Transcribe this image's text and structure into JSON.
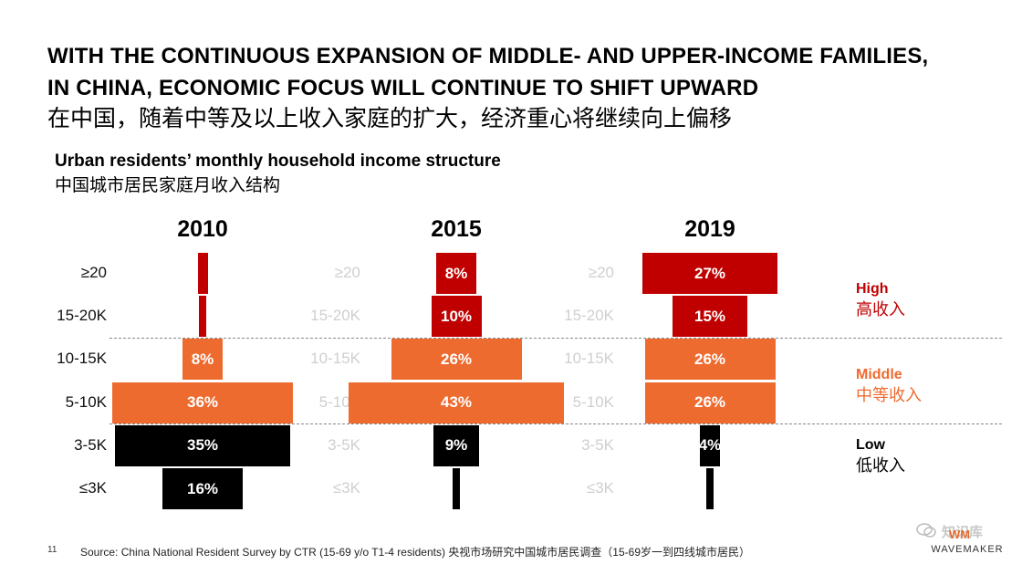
{
  "header": {
    "title_en_line1": "WITH THE CONTINUOUS EXPANSION OF MIDDLE- AND UPPER-INCOME FAMILIES,",
    "title_en_line2": "IN CHINA, ECONOMIC FOCUS WILL CONTINUE TO SHIFT UPWARD",
    "title_cn": "在中国，随着中等及以上收入家庭的扩大，经济重心将继续向上偏移"
  },
  "chart_data": {
    "type": "bar",
    "subtype": "population-pyramid",
    "title": "Urban residents’ monthly household income structure",
    "title_cn": "中国城市居民家庭月收入结构",
    "categories": [
      "≥20",
      "15-20K",
      "10-15K",
      "5-10K",
      "3-5K",
      "≤3K"
    ],
    "series": [
      {
        "name": "2010",
        "values": [
          2,
          1,
          8,
          36,
          35,
          16
        ],
        "labels": [
          "",
          "",
          "8%",
          "36%",
          "35%",
          "16%"
        ]
      },
      {
        "name": "2015",
        "values": [
          8,
          10,
          26,
          43,
          9,
          1
        ],
        "labels": [
          "8%",
          "10%",
          "26%",
          "43%",
          "9%",
          ""
        ]
      },
      {
        "name": "2019",
        "values": [
          27,
          15,
          26,
          26,
          4,
          1
        ],
        "labels": [
          "27%",
          "15%",
          "26%",
          "26%",
          "4%",
          ""
        ]
      }
    ],
    "groups": [
      {
        "label_en": "High",
        "label_cn": "高收入",
        "color": "#c00000",
        "categories": [
          "≥20",
          "15-20K"
        ]
      },
      {
        "label_en": "Middle",
        "label_cn": "中等收入",
        "color": "#ee6b30",
        "categories": [
          "10-15K",
          "5-10K"
        ]
      },
      {
        "label_en": "Low",
        "label_cn": "低收入",
        "color": "#000000",
        "categories": [
          "3-5K",
          "≤3K"
        ]
      }
    ],
    "units": "%"
  },
  "footer": {
    "page_number": "11",
    "source": "Source: China National Resident Survey by CTR (15-69 y/o T1-4 residents) 央视市场研究中国城市居民调查（15-69岁一到四线城市居民）",
    "brand": "WAVEMAKER",
    "brand_mark": "WM",
    "watermark": "知识库"
  }
}
